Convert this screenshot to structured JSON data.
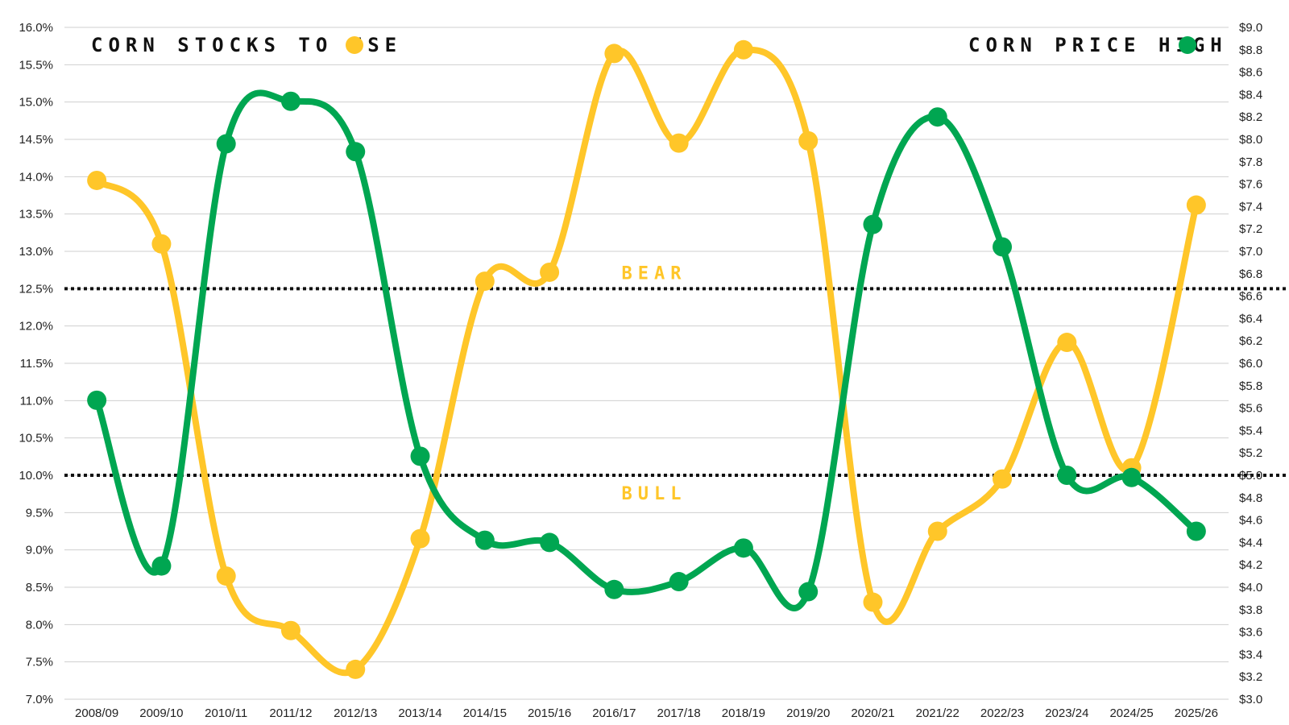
{
  "chart_data": {
    "type": "line",
    "categories": [
      "2008/09",
      "2009/10",
      "2010/11",
      "2011/12",
      "2012/13",
      "2013/14",
      "2014/15",
      "2015/16",
      "2016/17",
      "2017/18",
      "2018/19",
      "2019/20",
      "2020/21",
      "2021/22",
      "2022/23",
      "2023/24",
      "2024/25",
      "2025/26"
    ],
    "series": [
      {
        "name": "CORN STOCKS TO USE",
        "axis": "left",
        "color": "#FFC629",
        "values": [
          13.95,
          13.1,
          8.65,
          7.92,
          7.4,
          9.15,
          12.6,
          12.72,
          15.65,
          14.45,
          15.7,
          14.48,
          8.3,
          9.25,
          9.95,
          11.78,
          10.1,
          13.62
        ]
      },
      {
        "name": "CORN PRICE HIGH",
        "axis": "right",
        "color": "#00A651",
        "values": [
          5.67,
          4.19,
          7.96,
          8.34,
          7.89,
          5.17,
          4.42,
          4.4,
          3.98,
          4.05,
          4.35,
          3.96,
          7.24,
          8.2,
          7.04,
          5.0,
          4.98,
          4.5
        ]
      }
    ],
    "y_left": {
      "min": 7.0,
      "max": 16.0,
      "ticks": [
        "16.0%",
        "15.5%",
        "15.0%",
        "14.5%",
        "14.0%",
        "13.5%",
        "13.0%",
        "12.5%",
        "12.0%",
        "11.5%",
        "11.0%",
        "10.5%",
        "10.0%",
        "9.5%",
        "9.0%",
        "8.5%",
        "8.0%",
        "7.5%",
        "7.0%"
      ]
    },
    "y_right": {
      "min": 3.0,
      "max": 9.0,
      "ticks": [
        "$9.0",
        "$8.8",
        "$8.6",
        "$8.4",
        "$8.2",
        "$8.0",
        "$7.8",
        "$7.6",
        "$7.4",
        "$7.2",
        "$7.0",
        "$6.8",
        "$6.6",
        "$6.4",
        "$6.2",
        "$6.0",
        "$5.8",
        "$5.6",
        "$5.4",
        "$5.2",
        "$5.0",
        "$4.8",
        "$4.6",
        "$4.4",
        "$4.2",
        "$4.0",
        "$3.8",
        "$3.6",
        "$3.4",
        "$3.2",
        "$3.0"
      ]
    },
    "grid": true,
    "reference_lines": [
      {
        "value": 12.5,
        "axis": "left",
        "label": "BEAR",
        "label_color": "#FFC629"
      },
      {
        "value": 10.0,
        "axis": "left",
        "label": "BULL",
        "label_color": "#FFC629"
      }
    ],
    "legend": {
      "placement": "top",
      "left_label": "CORN STOCKS TO USE",
      "right_label": "CORN PRICE HIGH"
    }
  }
}
